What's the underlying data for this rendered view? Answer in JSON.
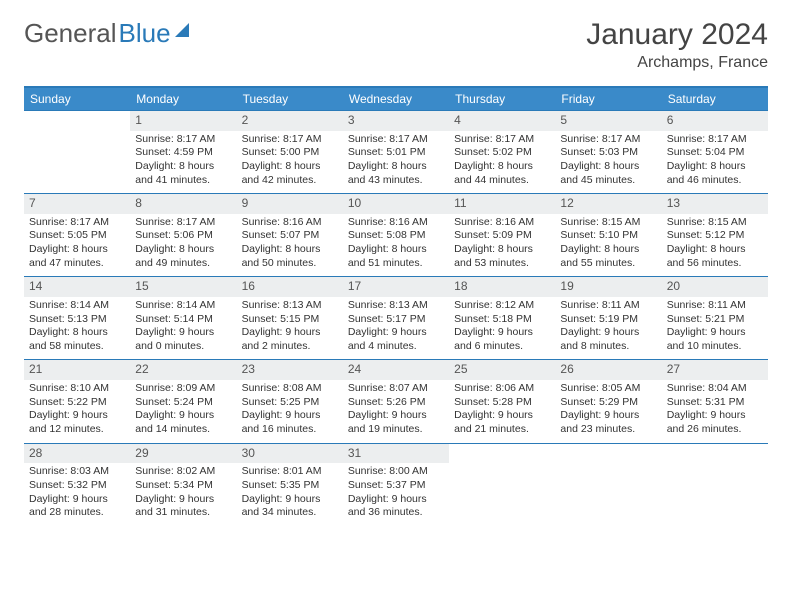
{
  "brand": {
    "part1": "General",
    "part2": "Blue"
  },
  "title": "January 2024",
  "location": "Archamps, France",
  "colors": {
    "header_bg": "#3a8ac9",
    "border": "#2a7ab8",
    "daynum_bg": "#eceeef",
    "text": "#333333"
  },
  "weekdays": [
    "Sunday",
    "Monday",
    "Tuesday",
    "Wednesday",
    "Thursday",
    "Friday",
    "Saturday"
  ],
  "days": [
    {
      "n": "",
      "sr": "",
      "ss": "",
      "dl": ""
    },
    {
      "n": "1",
      "sr": "Sunrise: 8:17 AM",
      "ss": "Sunset: 4:59 PM",
      "dl": "Daylight: 8 hours and 41 minutes."
    },
    {
      "n": "2",
      "sr": "Sunrise: 8:17 AM",
      "ss": "Sunset: 5:00 PM",
      "dl": "Daylight: 8 hours and 42 minutes."
    },
    {
      "n": "3",
      "sr": "Sunrise: 8:17 AM",
      "ss": "Sunset: 5:01 PM",
      "dl": "Daylight: 8 hours and 43 minutes."
    },
    {
      "n": "4",
      "sr": "Sunrise: 8:17 AM",
      "ss": "Sunset: 5:02 PM",
      "dl": "Daylight: 8 hours and 44 minutes."
    },
    {
      "n": "5",
      "sr": "Sunrise: 8:17 AM",
      "ss": "Sunset: 5:03 PM",
      "dl": "Daylight: 8 hours and 45 minutes."
    },
    {
      "n": "6",
      "sr": "Sunrise: 8:17 AM",
      "ss": "Sunset: 5:04 PM",
      "dl": "Daylight: 8 hours and 46 minutes."
    },
    {
      "n": "7",
      "sr": "Sunrise: 8:17 AM",
      "ss": "Sunset: 5:05 PM",
      "dl": "Daylight: 8 hours and 47 minutes."
    },
    {
      "n": "8",
      "sr": "Sunrise: 8:17 AM",
      "ss": "Sunset: 5:06 PM",
      "dl": "Daylight: 8 hours and 49 minutes."
    },
    {
      "n": "9",
      "sr": "Sunrise: 8:16 AM",
      "ss": "Sunset: 5:07 PM",
      "dl": "Daylight: 8 hours and 50 minutes."
    },
    {
      "n": "10",
      "sr": "Sunrise: 8:16 AM",
      "ss": "Sunset: 5:08 PM",
      "dl": "Daylight: 8 hours and 51 minutes."
    },
    {
      "n": "11",
      "sr": "Sunrise: 8:16 AM",
      "ss": "Sunset: 5:09 PM",
      "dl": "Daylight: 8 hours and 53 minutes."
    },
    {
      "n": "12",
      "sr": "Sunrise: 8:15 AM",
      "ss": "Sunset: 5:10 PM",
      "dl": "Daylight: 8 hours and 55 minutes."
    },
    {
      "n": "13",
      "sr": "Sunrise: 8:15 AM",
      "ss": "Sunset: 5:12 PM",
      "dl": "Daylight: 8 hours and 56 minutes."
    },
    {
      "n": "14",
      "sr": "Sunrise: 8:14 AM",
      "ss": "Sunset: 5:13 PM",
      "dl": "Daylight: 8 hours and 58 minutes."
    },
    {
      "n": "15",
      "sr": "Sunrise: 8:14 AM",
      "ss": "Sunset: 5:14 PM",
      "dl": "Daylight: 9 hours and 0 minutes."
    },
    {
      "n": "16",
      "sr": "Sunrise: 8:13 AM",
      "ss": "Sunset: 5:15 PM",
      "dl": "Daylight: 9 hours and 2 minutes."
    },
    {
      "n": "17",
      "sr": "Sunrise: 8:13 AM",
      "ss": "Sunset: 5:17 PM",
      "dl": "Daylight: 9 hours and 4 minutes."
    },
    {
      "n": "18",
      "sr": "Sunrise: 8:12 AM",
      "ss": "Sunset: 5:18 PM",
      "dl": "Daylight: 9 hours and 6 minutes."
    },
    {
      "n": "19",
      "sr": "Sunrise: 8:11 AM",
      "ss": "Sunset: 5:19 PM",
      "dl": "Daylight: 9 hours and 8 minutes."
    },
    {
      "n": "20",
      "sr": "Sunrise: 8:11 AM",
      "ss": "Sunset: 5:21 PM",
      "dl": "Daylight: 9 hours and 10 minutes."
    },
    {
      "n": "21",
      "sr": "Sunrise: 8:10 AM",
      "ss": "Sunset: 5:22 PM",
      "dl": "Daylight: 9 hours and 12 minutes."
    },
    {
      "n": "22",
      "sr": "Sunrise: 8:09 AM",
      "ss": "Sunset: 5:24 PM",
      "dl": "Daylight: 9 hours and 14 minutes."
    },
    {
      "n": "23",
      "sr": "Sunrise: 8:08 AM",
      "ss": "Sunset: 5:25 PM",
      "dl": "Daylight: 9 hours and 16 minutes."
    },
    {
      "n": "24",
      "sr": "Sunrise: 8:07 AM",
      "ss": "Sunset: 5:26 PM",
      "dl": "Daylight: 9 hours and 19 minutes."
    },
    {
      "n": "25",
      "sr": "Sunrise: 8:06 AM",
      "ss": "Sunset: 5:28 PM",
      "dl": "Daylight: 9 hours and 21 minutes."
    },
    {
      "n": "26",
      "sr": "Sunrise: 8:05 AM",
      "ss": "Sunset: 5:29 PM",
      "dl": "Daylight: 9 hours and 23 minutes."
    },
    {
      "n": "27",
      "sr": "Sunrise: 8:04 AM",
      "ss": "Sunset: 5:31 PM",
      "dl": "Daylight: 9 hours and 26 minutes."
    },
    {
      "n": "28",
      "sr": "Sunrise: 8:03 AM",
      "ss": "Sunset: 5:32 PM",
      "dl": "Daylight: 9 hours and 28 minutes."
    },
    {
      "n": "29",
      "sr": "Sunrise: 8:02 AM",
      "ss": "Sunset: 5:34 PM",
      "dl": "Daylight: 9 hours and 31 minutes."
    },
    {
      "n": "30",
      "sr": "Sunrise: 8:01 AM",
      "ss": "Sunset: 5:35 PM",
      "dl": "Daylight: 9 hours and 34 minutes."
    },
    {
      "n": "31",
      "sr": "Sunrise: 8:00 AM",
      "ss": "Sunset: 5:37 PM",
      "dl": "Daylight: 9 hours and 36 minutes."
    },
    {
      "n": "",
      "sr": "",
      "ss": "",
      "dl": ""
    },
    {
      "n": "",
      "sr": "",
      "ss": "",
      "dl": ""
    },
    {
      "n": "",
      "sr": "",
      "ss": "",
      "dl": ""
    }
  ]
}
